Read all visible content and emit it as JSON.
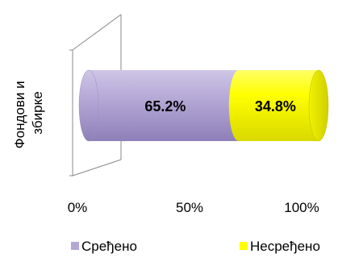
{
  "chart_data": {
    "type": "bar",
    "orientation": "horizontal",
    "stacked": true,
    "percent_stacked": true,
    "three_d": true,
    "categories": [
      "Фондови и збирке"
    ],
    "category_label_lines": [
      "Фондови и",
      "збирке"
    ],
    "series": [
      {
        "name": "Сређено",
        "values": [
          65.2
        ],
        "label": "65.2%",
        "color": "#B4A7D6"
      },
      {
        "name": "Несређено",
        "values": [
          34.8
        ],
        "label": "34.8%",
        "color": "#FFFF00"
      }
    ],
    "x_ticks": [
      "0%",
      "50%",
      "100%"
    ],
    "xlim": [
      0,
      100
    ],
    "grid": false,
    "legend_position": "bottom"
  }
}
